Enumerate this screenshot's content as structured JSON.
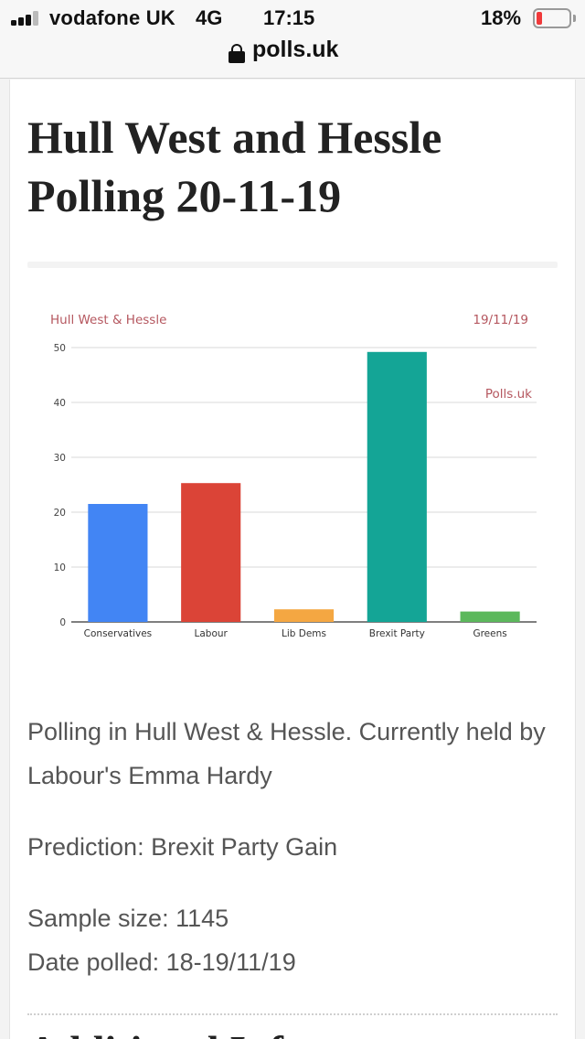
{
  "status_bar": {
    "carrier": "vodafone UK",
    "network": "4G",
    "time": "17:15",
    "battery_percent": "18%",
    "signal_bars_filled": 3,
    "signal_bars_total": 4,
    "battery_level": 0.18,
    "battery_color": "#f0393a"
  },
  "browser": {
    "url": "polls.uk",
    "lock_icon": "lock-icon"
  },
  "article": {
    "title": "Hull West and Hessle Polling 20-11-19",
    "description": "Polling in Hull West & Hessle. Currently held by Labour's Emma Hardy",
    "prediction": "Prediction: Brexit Party Gain",
    "sample_size": "Sample size: 1145",
    "date_polled": "Date polled: 18-19/11/19",
    "next_heading": "Additional Info"
  },
  "chart_data": {
    "type": "bar",
    "title": "Hull West & Hessle",
    "date_label": "19/11/19",
    "watermark": "Polls.uk",
    "categories": [
      "Conservatives",
      "Labour",
      "Lib Dems",
      "Brexit Party",
      "Greens"
    ],
    "values": [
      21.5,
      25.3,
      2.3,
      49.2,
      1.9
    ],
    "colors": [
      "#4285f4",
      "#db4437",
      "#f4a742",
      "#14a596",
      "#5cb85c"
    ],
    "ylim": [
      0,
      50
    ],
    "yticks": [
      0,
      10,
      20,
      30,
      40,
      50
    ],
    "grid": true,
    "xlabel": "",
    "ylabel": "",
    "title_color": "#b5575f"
  }
}
